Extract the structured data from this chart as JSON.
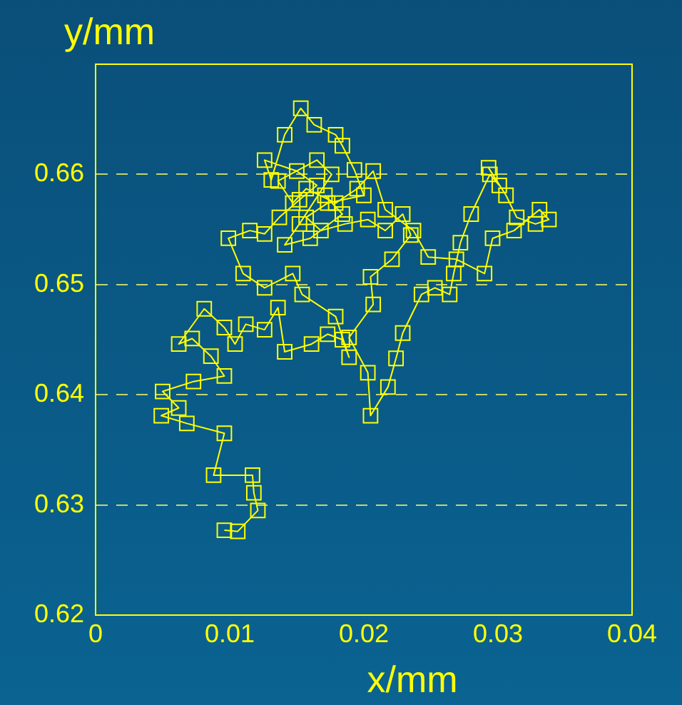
{
  "chart_data": {
    "type": "line",
    "xlabel": "x/mm",
    "ylabel": "y/mm",
    "marker": "square",
    "line_style": "solid",
    "grid": "y",
    "legend": false,
    "xlim": [
      0,
      0.04
    ],
    "xticks": [
      0,
      0.01,
      0.02,
      0.03,
      0.04
    ],
    "ylim": [
      0.62,
      0.67
    ],
    "yticks": [
      0.62,
      0.63,
      0.64,
      0.65,
      0.66
    ],
    "series": [
      {
        "color": "#ffff00",
        "x": [
          0.0096,
          0.0106,
          0.0121,
          0.0118,
          0.0117,
          0.0088,
          0.0096,
          0.0068,
          0.0049,
          0.0062,
          0.005,
          0.0073,
          0.0096,
          0.0086,
          0.0072,
          0.0062,
          0.0081,
          0.0096,
          0.0104,
          0.0112,
          0.0126,
          0.0136,
          0.0141,
          0.0161,
          0.0173,
          0.0184,
          0.0189,
          0.0179,
          0.0154,
          0.0147,
          0.0126,
          0.011,
          0.0099,
          0.0115,
          0.0126,
          0.0137,
          0.0152,
          0.0165,
          0.015,
          0.0126,
          0.0131,
          0.0141,
          0.0153,
          0.0163,
          0.0179,
          0.0184,
          0.0193,
          0.02,
          0.0173,
          0.0157,
          0.0168,
          0.0186,
          0.0203,
          0.0216,
          0.0229,
          0.0235,
          0.0221,
          0.0205,
          0.0207,
          0.0189,
          0.0203,
          0.0205,
          0.0218,
          0.0224,
          0.0229,
          0.0243,
          0.0253,
          0.0264,
          0.0267,
          0.0272,
          0.028,
          0.0294,
          0.0301,
          0.0293,
          0.0306,
          0.0314,
          0.0328,
          0.0338,
          0.0331,
          0.0312,
          0.0296,
          0.029,
          0.0269,
          0.0248,
          0.0237,
          0.0216,
          0.0207,
          0.0195,
          0.0179,
          0.0157,
          0.0147,
          0.0136,
          0.0165,
          0.0176,
          0.0152,
          0.0141,
          0.016,
          0.0184,
          0.0171
        ],
        "values": [
          0.6277,
          0.6276,
          0.6295,
          0.6311,
          0.6327,
          0.6327,
          0.6365,
          0.6374,
          0.6381,
          0.6388,
          0.6403,
          0.6412,
          0.6417,
          0.6435,
          0.6451,
          0.6446,
          0.6478,
          0.6461,
          0.6446,
          0.6464,
          0.6459,
          0.6479,
          0.6439,
          0.6446,
          0.6455,
          0.645,
          0.6434,
          0.6471,
          0.6491,
          0.651,
          0.6497,
          0.651,
          0.6542,
          0.6549,
          0.6546,
          0.6561,
          0.6577,
          0.659,
          0.6603,
          0.6613,
          0.6595,
          0.6636,
          0.666,
          0.6645,
          0.6636,
          0.6626,
          0.6604,
          0.6581,
          0.6574,
          0.6561,
          0.6549,
          0.6555,
          0.6559,
          0.6549,
          0.6564,
          0.6545,
          0.6523,
          0.6507,
          0.6482,
          0.6452,
          0.642,
          0.6381,
          0.6407,
          0.6433,
          0.6456,
          0.6491,
          0.6497,
          0.6491,
          0.651,
          0.6538,
          0.6564,
          0.66,
          0.659,
          0.6606,
          0.6581,
          0.6561,
          0.6555,
          0.6559,
          0.6568,
          0.6549,
          0.6542,
          0.651,
          0.6523,
          0.6525,
          0.6549,
          0.6568,
          0.6603,
          0.6587,
          0.6574,
          0.6587,
          0.6574,
          0.6594,
          0.6613,
          0.66,
          0.6555,
          0.6536,
          0.6542,
          0.6564,
          0.6581
        ]
      }
    ]
  }
}
